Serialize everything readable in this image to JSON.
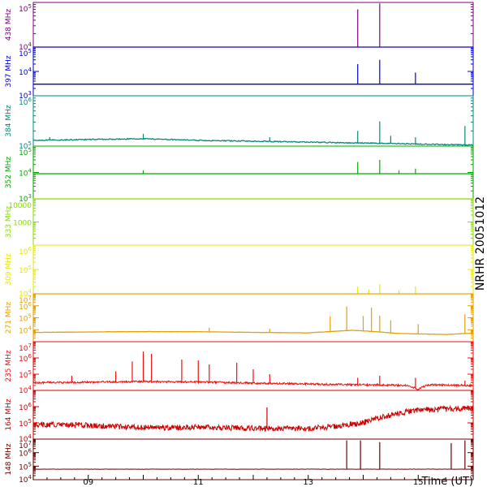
{
  "chart_data": [
    {
      "type": "line",
      "name": "438 MHz",
      "ylabel": "438 MHz",
      "color": "#800080",
      "y_scale": "log",
      "ylim": [
        10000,
        100000
      ],
      "ytick_labels": [
        "10^4",
        "10^5"
      ],
      "baseline": 10000,
      "spikes": [
        {
          "x": 13.9,
          "y": 70000
        },
        {
          "x": 14.3,
          "y": 95000
        }
      ]
    },
    {
      "type": "line",
      "name": "397 MHz",
      "ylabel": "397 MHz",
      "color": "#0000cc",
      "y_scale": "log",
      "ylim": [
        1000,
        100000
      ],
      "ytick_labels": [
        "10^3",
        "10^4",
        "10^5"
      ],
      "baseline": 3000,
      "spikes": [
        {
          "x": 13.9,
          "y": 20000
        },
        {
          "x": 14.3,
          "y": 30000
        },
        {
          "x": 14.95,
          "y": 9000
        }
      ]
    },
    {
      "type": "line",
      "name": "384 MHz",
      "ylabel": "384 MHz",
      "color": "#008b7a",
      "y_scale": "log",
      "ylim": [
        100000,
        1000000
      ],
      "ytick_labels": [
        "10^5",
        "10^6"
      ],
      "trend": [
        [
          8.0,
          130000
        ],
        [
          9.0,
          135000
        ],
        [
          10.0,
          140000
        ],
        [
          11.0,
          130000
        ],
        [
          12.0,
          125000
        ],
        [
          13.0,
          120000
        ],
        [
          14.0,
          115000
        ],
        [
          15.0,
          110000
        ],
        [
          15.95,
          105000
        ]
      ],
      "spikes": [
        {
          "x": 8.3,
          "y": 150000
        },
        {
          "x": 10.0,
          "y": 175000
        },
        {
          "x": 12.3,
          "y": 150000
        },
        {
          "x": 13.9,
          "y": 200000
        },
        {
          "x": 14.3,
          "y": 310000
        },
        {
          "x": 14.5,
          "y": 160000
        },
        {
          "x": 14.95,
          "y": 150000
        },
        {
          "x": 15.85,
          "y": 250000
        }
      ]
    },
    {
      "type": "line",
      "name": "352 MHz",
      "ylabel": "352 MHz",
      "color": "#00aa00",
      "y_scale": "log",
      "ylim": [
        1000,
        100000
      ],
      "ytick_labels": [
        "10^3",
        "10^4",
        "10^5"
      ],
      "baseline": 9000,
      "spikes": [
        {
          "x": 10.0,
          "y": 12000
        },
        {
          "x": 13.9,
          "y": 25000
        },
        {
          "x": 14.3,
          "y": 30000
        },
        {
          "x": 14.65,
          "y": 12000
        },
        {
          "x": 14.95,
          "y": 14000
        }
      ]
    },
    {
      "type": "line",
      "name": "333 MHz",
      "ylabel": "333 MHz",
      "color": "#88dd00",
      "y_scale": "log",
      "ylim": [
        100,
        10000
      ],
      "ytick_labels": [
        "1000",
        "10000"
      ],
      "baseline": 10000
    },
    {
      "type": "line",
      "name": "309 MHz",
      "ylabel": "309 MHz",
      "color": "#e8e800",
      "y_scale": "log",
      "ylim": [
        10000,
        1000000
      ],
      "ytick_labels": [
        "10^4",
        "10^5",
        "10^6"
      ],
      "baseline": 10000,
      "spikes": [
        {
          "x": 13.9,
          "y": 20000
        },
        {
          "x": 14.1,
          "y": 15000
        },
        {
          "x": 14.3,
          "y": 25000
        },
        {
          "x": 14.65,
          "y": 14000
        },
        {
          "x": 14.95,
          "y": 20000
        }
      ]
    },
    {
      "type": "line",
      "name": "271 MHz",
      "ylabel": "271 MHz",
      "color": "#e8a000",
      "y_scale": "log",
      "ylim": [
        1000,
        10000000
      ],
      "ytick_labels": [
        "10^4",
        "10^5",
        "10^6",
        "10^7"
      ],
      "trend": [
        [
          8.0,
          6000
        ],
        [
          9.0,
          6500
        ],
        [
          10.0,
          7000
        ],
        [
          11.0,
          6800
        ],
        [
          12.0,
          6000
        ],
        [
          13.0,
          5500
        ],
        [
          13.4,
          7000
        ],
        [
          13.8,
          9000
        ],
        [
          14.2,
          7000
        ],
        [
          14.6,
          5000
        ],
        [
          15.0,
          4500
        ],
        [
          15.5,
          4000
        ],
        [
          15.95,
          5000
        ]
      ],
      "spikes": [
        {
          "x": 11.2,
          "y": 15000
        },
        {
          "x": 12.3,
          "y": 12000
        },
        {
          "x": 13.4,
          "y": 130000
        },
        {
          "x": 13.7,
          "y": 900000
        },
        {
          "x": 14.0,
          "y": 140000
        },
        {
          "x": 14.15,
          "y": 700000
        },
        {
          "x": 14.3,
          "y": 150000
        },
        {
          "x": 14.5,
          "y": 60000
        },
        {
          "x": 15.0,
          "y": 30000
        },
        {
          "x": 15.85,
          "y": 200000
        }
      ]
    },
    {
      "type": "line",
      "name": "235 MHz",
      "ylabel": "235 MHz",
      "color": "#ee1111",
      "y_scale": "log",
      "ylim": [
        10000,
        10000000
      ],
      "ytick_labels": [
        "10^4",
        "10^5",
        "10^6",
        "10^7"
      ],
      "trend": [
        [
          8.0,
          30000
        ],
        [
          9.0,
          32000
        ],
        [
          10.0,
          35000
        ],
        [
          11.0,
          33000
        ],
        [
          12.0,
          28000
        ],
        [
          13.0,
          25000
        ],
        [
          14.0,
          22000
        ],
        [
          14.8,
          20000
        ],
        [
          15.0,
          12000
        ],
        [
          15.2,
          22000
        ],
        [
          15.95,
          20000
        ]
      ],
      "spikes": [
        {
          "x": 8.7,
          "y": 80000
        },
        {
          "x": 9.5,
          "y": 150000
        },
        {
          "x": 9.8,
          "y": 600000
        },
        {
          "x": 10.0,
          "y": 2500000
        },
        {
          "x": 10.15,
          "y": 1800000
        },
        {
          "x": 10.7,
          "y": 800000
        },
        {
          "x": 11.0,
          "y": 700000
        },
        {
          "x": 11.2,
          "y": 400000
        },
        {
          "x": 11.7,
          "y": 500000
        },
        {
          "x": 12.0,
          "y": 200000
        },
        {
          "x": 12.3,
          "y": 100000
        },
        {
          "x": 13.9,
          "y": 60000
        },
        {
          "x": 14.3,
          "y": 80000
        },
        {
          "x": 14.95,
          "y": 60000
        },
        {
          "x": 15.85,
          "y": 40000
        }
      ]
    },
    {
      "type": "line",
      "name": "164 MHz",
      "ylabel": "164 MHz",
      "color": "#cc0000",
      "y_scale": "log",
      "ylim": [
        10000,
        10000000
      ],
      "ytick_labels": [
        "10^4",
        "10^5",
        "10^6"
      ],
      "trend": [
        [
          8.0,
          80000
        ],
        [
          9.0,
          70000
        ],
        [
          10.0,
          50000
        ],
        [
          11.0,
          55000
        ],
        [
          12.0,
          45000
        ],
        [
          13.0,
          45000
        ],
        [
          13.5,
          60000
        ],
        [
          14.0,
          100000
        ],
        [
          14.5,
          300000
        ],
        [
          15.0,
          600000
        ],
        [
          15.5,
          700000
        ],
        [
          15.95,
          800000
        ]
      ],
      "spikes": [
        {
          "x": 12.25,
          "y": 900000
        }
      ]
    },
    {
      "type": "line",
      "name": "148 MHz",
      "ylabel": "148 MHz",
      "color": "#6b0000",
      "y_scale": "log",
      "ylim": [
        10000,
        10000000
      ],
      "ytick_labels": [
        "10^4",
        "10^5",
        "10^6",
        "10^7"
      ],
      "trend": [
        [
          8.0,
          60000
        ],
        [
          10.0,
          60000
        ],
        [
          12.0,
          60000
        ],
        [
          14.0,
          60000
        ],
        [
          15.95,
          60000
        ]
      ],
      "spikes": [
        {
          "x": 13.7,
          "y": 8000000
        },
        {
          "x": 13.95,
          "y": 8000000
        },
        {
          "x": 14.3,
          "y": 6000000
        },
        {
          "x": 15.6,
          "y": 5000000
        },
        {
          "x": 15.85,
          "y": 8000000
        }
      ]
    }
  ],
  "x_axis": {
    "xlim": [
      8.0,
      16.0
    ],
    "tick_labels": [
      {
        "x": 9.0,
        "label": "09"
      },
      {
        "x": 11.0,
        "label": "11"
      },
      {
        "x": 13.0,
        "label": "13"
      },
      {
        "x": 15.0,
        "label": "15"
      }
    ],
    "xlabel": "Time (UT)"
  },
  "side_label": "NRHR 20051012"
}
